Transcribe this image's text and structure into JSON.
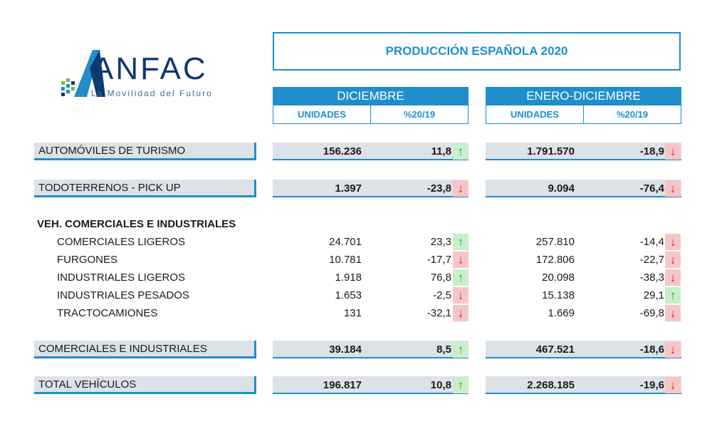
{
  "logo": {
    "name": "ANFAC",
    "tagline": "La Movilidad del Futuro"
  },
  "title": "PRODUCCIÓN ESPAÑOLA 2020",
  "sections": [
    {
      "label": "DICIEMBRE",
      "cols": [
        "UNIDADES",
        "%20/19"
      ]
    },
    {
      "label": "ENERO-DICIEMBRE",
      "cols": [
        "UNIDADES",
        "%20/19"
      ]
    }
  ],
  "group_header": "VEH. COMERCIALES E INDUSTRIALES",
  "colors": {
    "accent": "#1f8ecb",
    "up": "#2a9d3a",
    "down": "#d62828",
    "row_bg": "#dde1e8"
  },
  "rows": [
    {
      "label": "AUTOMÓVILES DE TURISMO",
      "dic_u": "156.236",
      "dic_p": "11,8",
      "dic_dir": "up",
      "ene_u": "1.791.570",
      "ene_p": "-18,9",
      "ene_dir": "down"
    },
    {
      "label": "TODOTERRENOS - PICK UP",
      "dic_u": "1.397",
      "dic_p": "-23,8",
      "dic_dir": "down",
      "ene_u": "9.094",
      "ene_p": "-76,4",
      "ene_dir": "down"
    },
    {
      "label": "COMERCIALES LIGEROS",
      "dic_u": "24.701",
      "dic_p": "23,3",
      "dic_dir": "up",
      "ene_u": "257.810",
      "ene_p": "-14,4",
      "ene_dir": "down"
    },
    {
      "label": "FURGONES",
      "dic_u": "10.781",
      "dic_p": "-17,7",
      "dic_dir": "down",
      "ene_u": "172.806",
      "ene_p": "-22,7",
      "ene_dir": "down"
    },
    {
      "label": "INDUSTRIALES LIGEROS",
      "dic_u": "1.918",
      "dic_p": "76,8",
      "dic_dir": "up",
      "ene_u": "20.098",
      "ene_p": "-38,3",
      "ene_dir": "down"
    },
    {
      "label": "INDUSTRIALES PESADOS",
      "dic_u": "1.653",
      "dic_p": "-2,5",
      "dic_dir": "down",
      "ene_u": "15.138",
      "ene_p": "29,1",
      "ene_dir": "up"
    },
    {
      "label": "TRACTOCAMIONES",
      "dic_u": "131",
      "dic_p": "-32,1",
      "dic_dir": "down",
      "ene_u": "1.669",
      "ene_p": "-69,8",
      "ene_dir": "down"
    },
    {
      "label": "COMERCIALES E INDUSTRIALES",
      "dic_u": "39.184",
      "dic_p": "8,5",
      "dic_dir": "up",
      "ene_u": "467.521",
      "ene_p": "-18,6",
      "ene_dir": "down"
    },
    {
      "label": "TOTAL VEHÍCULOS",
      "dic_u": "196.817",
      "dic_p": "10,8",
      "dic_dir": "up",
      "ene_u": "2.268.185",
      "ene_p": "-19,6",
      "ene_dir": "down"
    }
  ]
}
